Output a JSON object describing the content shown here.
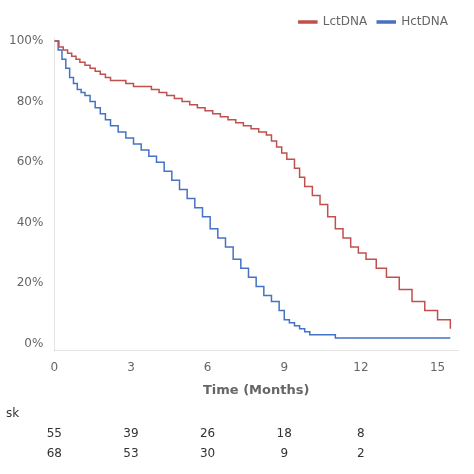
{
  "chart_data": {
    "type": "step",
    "xlabel": "Time (Months)",
    "xlim": [
      0,
      15.8
    ],
    "xticks": [
      0,
      3,
      6,
      9,
      12,
      15
    ],
    "ylim": [
      -2,
      101
    ],
    "yticks": [
      {
        "value": 0,
        "label": "0%"
      },
      {
        "value": 20,
        "label": "20%"
      },
      {
        "value": 40,
        "label": "40%"
      },
      {
        "value": 60,
        "label": "60%"
      },
      {
        "value": 80,
        "label": "80%"
      },
      {
        "value": 100,
        "label": "100%"
      }
    ],
    "grid": false,
    "legend": "upper right",
    "at_risk_label": "sk",
    "at_risk_times": [
      0,
      3,
      6,
      9,
      12
    ],
    "series": [
      {
        "name": "LctDNA",
        "color": "#c0504d",
        "x": [
          0,
          0.18,
          0.35,
          0.52,
          0.68,
          0.85,
          1.0,
          1.2,
          1.4,
          1.6,
          1.8,
          2.0,
          2.2,
          2.5,
          2.8,
          3.1,
          3.5,
          3.8,
          4.1,
          4.4,
          4.7,
          5.0,
          5.3,
          5.6,
          5.9,
          6.2,
          6.5,
          6.8,
          7.1,
          7.4,
          7.7,
          8.0,
          8.3,
          8.5,
          8.7,
          8.9,
          9.1,
          9.4,
          9.6,
          9.8,
          10.1,
          10.4,
          10.7,
          11.0,
          11.3,
          11.6,
          11.9,
          12.2,
          12.6,
          13.0,
          13.5,
          14.0,
          14.5,
          15.0,
          15.5
        ],
        "values": [
          100,
          98,
          97,
          96,
          95,
          94,
          93,
          92,
          91,
          90,
          89,
          88,
          87,
          87,
          86,
          85,
          85,
          84,
          83,
          82,
          81,
          80,
          79,
          78,
          77,
          76,
          75,
          74,
          73,
          72,
          71,
          70,
          69,
          67,
          65,
          63,
          61,
          58,
          55,
          52,
          49,
          46,
          42,
          38,
          35,
          32,
          30,
          28,
          25,
          22,
          18,
          14,
          11,
          8,
          5
        ],
        "at_risk": [
          55,
          39,
          26,
          18,
          8
        ]
      },
      {
        "name": "HctDNA",
        "color": "#4472c4",
        "x": [
          0,
          0.15,
          0.3,
          0.45,
          0.6,
          0.75,
          0.9,
          1.05,
          1.2,
          1.4,
          1.6,
          1.8,
          2.0,
          2.2,
          2.5,
          2.8,
          3.1,
          3.4,
          3.7,
          4.0,
          4.3,
          4.6,
          4.9,
          5.2,
          5.5,
          5.8,
          6.1,
          6.4,
          6.7,
          7.0,
          7.3,
          7.6,
          7.9,
          8.2,
          8.5,
          8.8,
          9.0,
          9.2,
          9.4,
          9.6,
          9.8,
          10.0,
          10.5,
          11.0,
          11.5,
          12.0,
          12.5,
          13.0,
          14.0,
          15.0,
          15.5
        ],
        "values": [
          100,
          97,
          94,
          91,
          88,
          86,
          84,
          83,
          82,
          80,
          78,
          76,
          74,
          72,
          70,
          68,
          66,
          64,
          62,
          60,
          57,
          54,
          51,
          48,
          45,
          42,
          38,
          35,
          32,
          28,
          25,
          22,
          19,
          16,
          14,
          11,
          8,
          7,
          6,
          5,
          4,
          3,
          3,
          2,
          2,
          2,
          2,
          2,
          2,
          2,
          2
        ],
        "at_risk": [
          68,
          53,
          30,
          9,
          2
        ]
      }
    ]
  }
}
